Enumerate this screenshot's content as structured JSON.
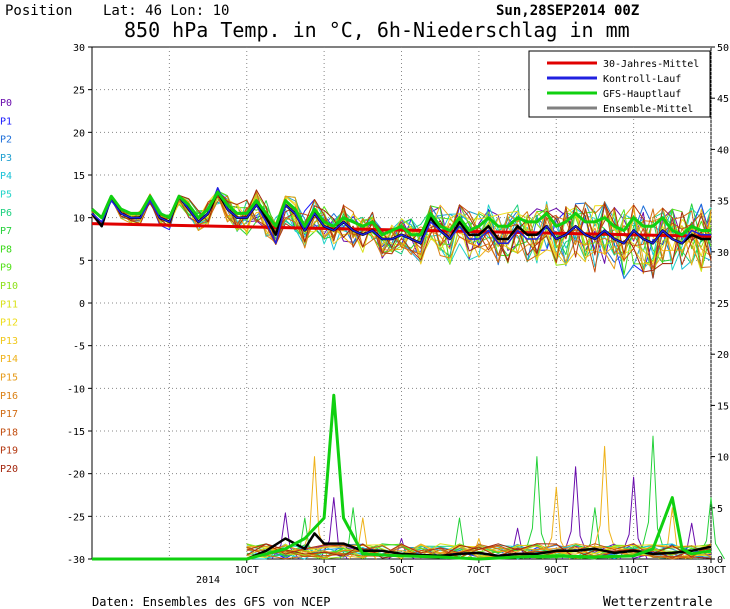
{
  "header": {
    "position_label": "Position",
    "coords": "Lat: 46 Lon: 10",
    "title": "850 hPa Temp. in °C, 6h-Niederschlag in mm",
    "run": "Sun,28SEP2014 00Z"
  },
  "footer": {
    "source": "Daten: Ensembles des GFS von NCEP",
    "brand": "Wetterzentrale"
  },
  "member_labels": [
    "P0",
    "P1",
    "P2",
    "P3",
    "P4",
    "P5",
    "P6",
    "P7",
    "P8",
    "P9",
    "P10",
    "P11",
    "P12",
    "P13",
    "P14",
    "P15",
    "P16",
    "P17",
    "P18",
    "P19",
    "P20"
  ],
  "member_colors": [
    "#6a0dad",
    "#1a1aff",
    "#1e6fd9",
    "#1fa0d0",
    "#19c2d8",
    "#22d3c8",
    "#1bd07f",
    "#25d13a",
    "#3ad91a",
    "#54e11a",
    "#8ee11a",
    "#d9e11a",
    "#eedd1a",
    "#f0c81a",
    "#efb21a",
    "#e69b1a",
    "#db8115",
    "#d06a12",
    "#c24e10",
    "#b3360e",
    "#a3260d"
  ],
  "chart_data": {
    "type": "line",
    "x_range_days": [
      0,
      16
    ],
    "x_ticks": [
      {
        "day": 4,
        "label": "1OCT"
      },
      {
        "day": 6,
        "label": "3OCT"
      },
      {
        "day": 8,
        "label": "5OCT"
      },
      {
        "day": 10,
        "label": "7OCT"
      },
      {
        "day": 12,
        "label": "9OCT"
      },
      {
        "day": 14,
        "label": "11OCT"
      },
      {
        "day": 16,
        "label": "13OCT"
      }
    ],
    "x_year_label": "2014",
    "y_left": {
      "unit": "°C",
      "range": [
        -30,
        30
      ],
      "ticks": [
        30,
        25,
        20,
        15,
        10,
        5,
        0,
        -5,
        -10,
        -15,
        -20,
        -25,
        -30
      ]
    },
    "y_right": {
      "unit": "mm",
      "range": [
        0,
        50
      ],
      "ticks": [
        50,
        45,
        40,
        35,
        30,
        25,
        20,
        15,
        10,
        5,
        0
      ]
    },
    "grid": true,
    "legend": {
      "placement": "top-right",
      "entries": [
        {
          "label": "30-Jahres-Mittel",
          "color": "#e00000"
        },
        {
          "label": "Kontroll-Lauf",
          "color": "#2020e0"
        },
        {
          "label": "GFS-Hauptlauf",
          "color": "#10d010"
        },
        {
          "label": "Ensemble-Mittel",
          "color": "#808080"
        }
      ]
    },
    "temp_mean30": {
      "x": [
        0,
        16
      ],
      "y": [
        9.3,
        7.8
      ]
    },
    "temp_gfs_main": {
      "x": [
        0,
        0.25,
        0.5,
        0.75,
        1,
        1.25,
        1.5,
        1.75,
        2,
        2.25,
        2.5,
        2.75,
        3,
        3.25,
        3.5,
        3.75,
        4,
        4.25,
        4.5,
        4.75,
        5,
        5.25,
        5.5,
        5.75,
        6,
        6.25,
        6.5,
        6.75,
        7,
        7.25,
        7.5,
        7.75,
        8,
        8.25,
        8.5,
        8.75,
        9,
        9.25,
        9.5,
        9.75,
        10,
        10.25,
        10.5,
        10.75,
        11,
        11.25,
        11.5,
        11.75,
        12,
        12.25,
        12.5,
        12.75,
        13,
        13.25,
        13.5,
        13.75,
        14,
        14.25,
        14.5,
        14.75,
        15,
        15.25,
        15.5,
        15.75,
        16
      ],
      "y": [
        11,
        10,
        12.5,
        11,
        10.5,
        10.5,
        12.5,
        10.5,
        10,
        12.5,
        11.5,
        10,
        11,
        13,
        11.5,
        10.5,
        10.5,
        12,
        10.5,
        9,
        12,
        11,
        9,
        11,
        9.5,
        9,
        10,
        9.5,
        9,
        9.5,
        8,
        8.5,
        9,
        8,
        8,
        10.5,
        9,
        8.5,
        10,
        8.5,
        9,
        10,
        9,
        9,
        10,
        9.5,
        9.5,
        10.5,
        9,
        9.5,
        10.5,
        9.5,
        9.5,
        10,
        9,
        8.5,
        10,
        9,
        9,
        10,
        8.5,
        8,
        9,
        8.5,
        8.5
      ]
    },
    "temp_control": {
      "x": [
        0,
        0.25,
        0.5,
        0.75,
        1,
        1.25,
        1.5,
        1.75,
        2,
        2.25,
        2.5,
        2.75,
        3,
        3.25,
        3.5,
        3.75,
        4,
        4.25,
        4.5,
        4.75,
        5,
        5.25,
        5.5,
        5.75,
        6,
        6.25,
        6.5,
        6.75,
        7,
        7.25,
        7.5,
        7.75,
        8,
        8.25,
        8.5,
        8.75,
        9,
        9.25,
        9.5,
        9.75,
        10,
        10.25,
        10.5,
        10.75,
        11,
        11.25,
        11.5,
        11.75,
        12,
        12.25,
        12.5,
        12.75,
        13,
        13.25,
        13.5,
        13.75,
        14,
        14.25,
        14.5,
        14.75,
        15,
        15.25,
        15.5,
        15.75,
        16
      ],
      "y": [
        10.5,
        9.5,
        12,
        10.5,
        10,
        10,
        12,
        10,
        9.5,
        12.5,
        11,
        9.5,
        10.5,
        13.5,
        11,
        10,
        10,
        11.5,
        9.5,
        7,
        11.5,
        10.5,
        8.5,
        10.5,
        9,
        8.5,
        9.5,
        8.5,
        8,
        8.5,
        7.5,
        7.5,
        8,
        7.5,
        7,
        9.5,
        8.5,
        7.5,
        9,
        7.5,
        7.5,
        8.5,
        7,
        7,
        8.5,
        7.5,
        7.5,
        9,
        7.5,
        8,
        9,
        8,
        7.5,
        8.5,
        7.5,
        7,
        8.5,
        7.5,
        7,
        8.5,
        7.5,
        7,
        8.5,
        8,
        8
      ]
    },
    "temp_ens_mean": {
      "x": [
        0,
        0.25,
        0.5,
        0.75,
        1,
        1.25,
        1.5,
        1.75,
        2,
        2.25,
        2.5,
        2.75,
        3,
        3.25,
        3.5,
        3.75,
        4,
        4.25,
        4.5,
        4.75,
        5,
        5.25,
        5.5,
        5.75,
        6,
        6.25,
        6.5,
        6.75,
        7,
        7.25,
        7.5,
        7.75,
        8,
        8.25,
        8.5,
        8.75,
        9,
        9.25,
        9.5,
        9.75,
        10,
        10.25,
        10.5,
        10.75,
        11,
        11.25,
        11.5,
        11.75,
        12,
        12.25,
        12.5,
        12.75,
        13,
        13.25,
        13.5,
        13.75,
        14,
        14.25,
        14.5,
        14.75,
        15,
        15.25,
        15.5,
        15.75,
        16
      ],
      "y": [
        10.5,
        9,
        12.5,
        10.5,
        10,
        10,
        12.5,
        10,
        9.5,
        12.5,
        11,
        9.5,
        10.5,
        13,
        11,
        10,
        10,
        11.5,
        10,
        8,
        11.5,
        10.5,
        8.5,
        10.5,
        9,
        8.5,
        9.5,
        8.5,
        8,
        8.5,
        7.5,
        7.5,
        8,
        7.5,
        7,
        10,
        8.5,
        7.5,
        9.5,
        8,
        8,
        9,
        7.5,
        7.5,
        9,
        8,
        8,
        9,
        7.5,
        8,
        9,
        8,
        7.5,
        8.5,
        7.5,
        7,
        8.5,
        7.5,
        7,
        8.5,
        7.5,
        7,
        8,
        7.5,
        7.5
      ]
    },
    "precip_gfs_main": {
      "x": [
        0,
        2,
        4,
        4.5,
        5,
        5.5,
        6,
        6.25,
        6.5,
        7,
        8,
        9,
        10,
        11,
        12,
        13,
        14,
        14.5,
        15,
        15.25,
        15.5,
        16
      ],
      "y": [
        0,
        0,
        0,
        0.5,
        1,
        2,
        4,
        16,
        4,
        0.5,
        0.3,
        0.2,
        0,
        0.2,
        0.3,
        0.2,
        0.3,
        1,
        6,
        1,
        0.5,
        0.8
      ]
    },
    "precip_ens_mean": {
      "x": [
        0,
        2,
        4,
        4.5,
        5,
        5.5,
        5.75,
        6,
        6.5,
        7,
        7.5,
        8,
        8.5,
        9,
        9.5,
        10,
        10.5,
        11,
        11.5,
        12,
        12.5,
        13,
        13.5,
        14,
        14.5,
        15,
        15.5,
        16
      ],
      "y": [
        0,
        0,
        0,
        0.8,
        2,
        1,
        2.5,
        1.5,
        1.5,
        0.8,
        0.8,
        0.5,
        0.4,
        0.3,
        0.5,
        0.6,
        0.3,
        0.5,
        0.5,
        0.8,
        0.8,
        1,
        0.6,
        0.8,
        0.5,
        0.6,
        0.8,
        1.2
      ]
    },
    "temp_band": {
      "x_start": 0,
      "x_end": 16,
      "upper": [
        11.5,
        13,
        12.5,
        13,
        13.5,
        12.5,
        12,
        11,
        11,
        11.5,
        11.5,
        11.5,
        12,
        12,
        11.5,
        11,
        12.5
      ],
      "lower": [
        9,
        9,
        8.5,
        8.5,
        8,
        6.5,
        6,
        5.5,
        5,
        4,
        4,
        3.5,
        3,
        2,
        1,
        1,
        2
      ]
    },
    "precip_spikes": [
      {
        "x": 5.0,
        "h": 4.5
      },
      {
        "x": 5.5,
        "h": 4
      },
      {
        "x": 5.75,
        "h": 10
      },
      {
        "x": 6.25,
        "h": 6
      },
      {
        "x": 6.75,
        "h": 5
      },
      {
        "x": 7.0,
        "h": 4
      },
      {
        "x": 8.0,
        "h": 2
      },
      {
        "x": 9.5,
        "h": 4
      },
      {
        "x": 10.0,
        "h": 2
      },
      {
        "x": 11.0,
        "h": 3
      },
      {
        "x": 11.5,
        "h": 10
      },
      {
        "x": 12.0,
        "h": 7
      },
      {
        "x": 12.5,
        "h": 9
      },
      {
        "x": 13.0,
        "h": 5
      },
      {
        "x": 13.25,
        "h": 11
      },
      {
        "x": 14.0,
        "h": 8
      },
      {
        "x": 14.5,
        "h": 12
      },
      {
        "x": 15.0,
        "h": 5
      },
      {
        "x": 15.5,
        "h": 3.5
      },
      {
        "x": 16.0,
        "h": 6
      }
    ]
  }
}
